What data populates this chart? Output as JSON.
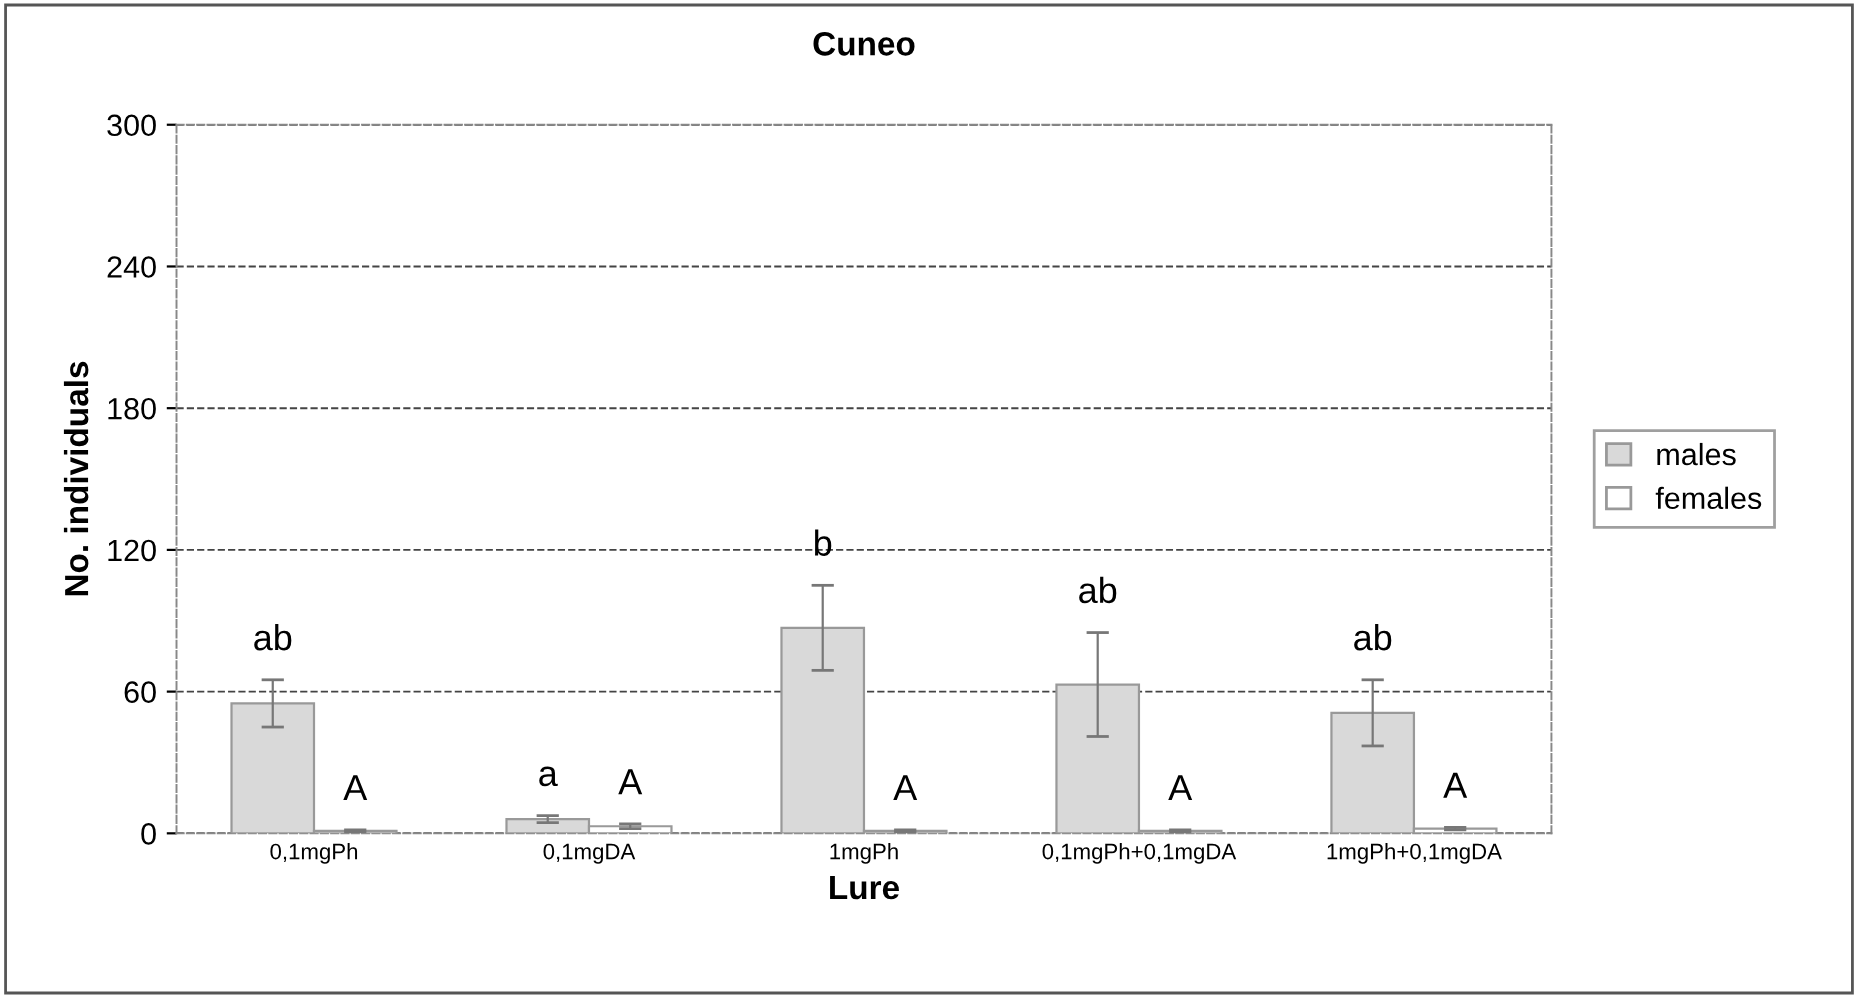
{
  "chart_data": {
    "type": "bar",
    "title": "Cuneo",
    "xlabel": "Lure",
    "ylabel": "No. individuals",
    "categories": [
      "0,1mgPh",
      "0,1mgDA",
      "1mgPh",
      "0,1mgPh+0,1mgDA",
      "1mgPh+0,1mgDA"
    ],
    "series": [
      {
        "name": "males",
        "color": "#d9d9d9",
        "values": [
          55,
          6,
          87,
          63,
          51
        ],
        "errors": [
          10,
          1.5,
          18,
          22,
          14
        ]
      },
      {
        "name": "females",
        "color": "#ffffff",
        "values": [
          1,
          3,
          1,
          1,
          2
        ],
        "errors": [
          0.5,
          1,
          0.5,
          0.5,
          0.5
        ]
      }
    ],
    "ylim": [
      0,
      300
    ],
    "yticks": [
      0,
      60,
      120,
      180,
      240,
      300
    ],
    "grid": "y",
    "legend": "right",
    "annotations": [
      "ab",
      "A",
      "a",
      "A",
      "b",
      "A",
      "ab",
      "A",
      "ab",
      "A"
    ]
  }
}
